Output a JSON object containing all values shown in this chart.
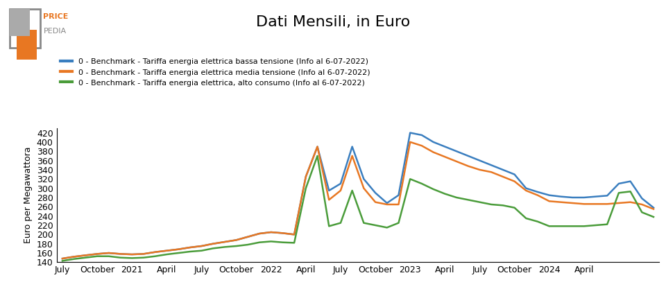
{
  "title": "Dati Mensili, in Euro",
  "ylabel": "Euro per Megawattora",
  "line_colors": [
    "#3a7ebf",
    "#e87722",
    "#4a9c3a"
  ],
  "legend_labels": [
    "0 - Benchmark - Tariffa energia elettrica bassa tensione (Info al 6-07-2022)",
    "0 - Benchmark - Tariffa energia elettrica media tensione (Info al 6-07-2022)",
    "0 - Benchmark - Tariffa energia elettrica, alto consumo (Info al 6-07-2022)"
  ],
  "xtick_labels": [
    "July",
    "October",
    "2021",
    "April",
    "July",
    "October",
    "2022",
    "April",
    "July",
    "October",
    "2023",
    "April",
    "July",
    "October",
    "2024",
    "April"
  ],
  "xtick_positions": [
    0,
    3,
    6,
    9,
    12,
    15,
    18,
    21,
    24,
    27,
    30,
    33,
    36,
    39,
    42,
    45
  ],
  "ytick_labels": [
    "140",
    "160",
    "180",
    "200",
    "220",
    "240",
    "260",
    "280",
    "300",
    "320",
    "340",
    "360",
    "380",
    "400",
    "420"
  ],
  "ylim": [
    140,
    430
  ],
  "background_color": "#ffffff",
  "blue": [
    148,
    152,
    155,
    158,
    160,
    158,
    157,
    158,
    162,
    165,
    168,
    172,
    175,
    180,
    184,
    188,
    195,
    202,
    205,
    203,
    200,
    325,
    390,
    295,
    310,
    390,
    320,
    290,
    268,
    285,
    420,
    415,
    400,
    390,
    380,
    370,
    360,
    350,
    340,
    330,
    300,
    292,
    285,
    282,
    280,
    280,
    282,
    284,
    310,
    315,
    278,
    258
  ],
  "orange": [
    148,
    152,
    155,
    158,
    160,
    158,
    157,
    158,
    162,
    165,
    168,
    172,
    175,
    180,
    184,
    188,
    195,
    202,
    205,
    203,
    200,
    325,
    390,
    275,
    295,
    370,
    300,
    270,
    265,
    265,
    400,
    392,
    378,
    368,
    358,
    348,
    340,
    335,
    325,
    315,
    295,
    285,
    272,
    270,
    268,
    266,
    266,
    266,
    268,
    270,
    265,
    255
  ],
  "green": [
    143,
    147,
    150,
    153,
    153,
    150,
    149,
    150,
    153,
    157,
    160,
    163,
    165,
    170,
    173,
    175,
    178,
    183,
    185,
    183,
    182,
    300,
    370,
    218,
    225,
    295,
    225,
    220,
    215,
    225,
    320,
    310,
    298,
    288,
    280,
    275,
    270,
    265,
    263,
    258,
    235,
    228,
    218,
    218,
    218,
    218,
    220,
    222,
    290,
    293,
    248,
    238
  ]
}
